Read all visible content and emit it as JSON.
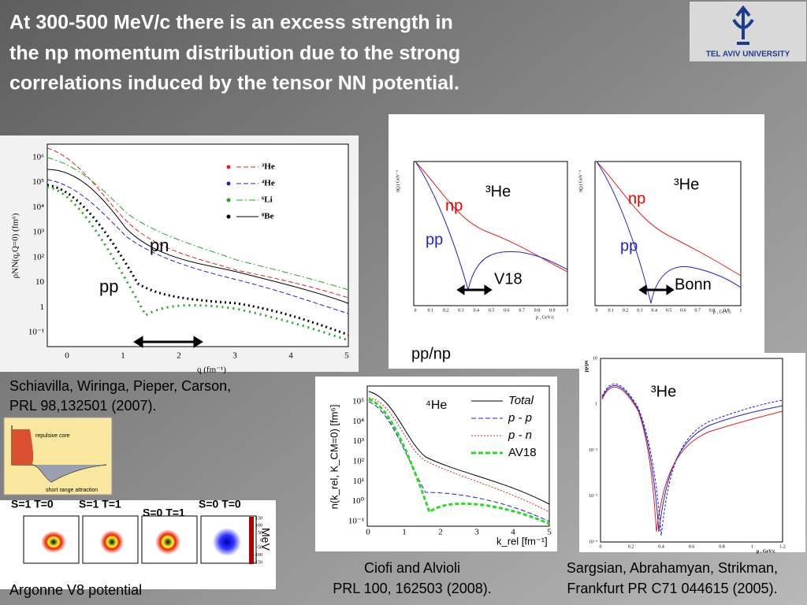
{
  "title_lines": [
    "At 300-500 MeV/c there is an excess strength in",
    "the np momentum distribution due to the strong",
    "correlations induced by the  tensor NN potential."
  ],
  "logo": "TEL AVIV UNIVERSITY",
  "left_plot": {
    "xticks": [
      "0",
      "1",
      "2",
      "3",
      "4",
      "5"
    ],
    "yticks": [
      "10⁶",
      "10⁵",
      "10⁴",
      "10³",
      "10²",
      "10",
      "1",
      "10⁻¹"
    ],
    "xlabel": "q (fm⁻¹)",
    "ylabel": "ρNN(q,Q=0) (fm⁶)",
    "legend": [
      "³He",
      "⁴He",
      "⁶Li",
      "⁸Be"
    ],
    "pn": "pn",
    "pp": "pp",
    "ref_lines": [
      "Schiavilla, Wiringa, Pieper, Carson,",
      "PRL 98,132501 (2007)."
    ]
  },
  "top_right": {
    "left": {
      "nucleus": "³He",
      "np": "np",
      "pp": "pp",
      "potential": "V18"
    },
    "right": {
      "nucleus": "³He",
      "np": "np",
      "pp": "pp",
      "potential": "Bonn"
    },
    "xticks": [
      "0",
      "0.1",
      "0.2",
      "0.3",
      "0.4",
      "0.5",
      "0.6",
      "0.7",
      "0.8",
      "0.9",
      "1"
    ],
    "xlabel": "p , GeV/c",
    "ylabel": "n(p) GeV⁻³",
    "caption": "pp/np"
  },
  "middle_plot": {
    "nucleus": "⁴He",
    "legend": [
      "Total",
      "p - p",
      "p - n",
      "AV18"
    ],
    "xticks": [
      "0",
      "1",
      "2",
      "3",
      "4",
      "5"
    ],
    "yticks": [
      "10⁵",
      "10⁴",
      "10³",
      "10²",
      "10¹",
      "10⁰",
      "10⁻¹"
    ],
    "xlabel": "k_rel [fm⁻¹]",
    "ylabel": "n(k_rel, K_CM=0) [fm⁶]",
    "ref_lines": [
      "Ciofi and Alvioli",
      "PRL 100, 162503 (2008)."
    ]
  },
  "right_plot": {
    "nucleus": "³He",
    "ylabel": "pp/pn",
    "yticks": [
      "10",
      "1",
      "10⁻¹",
      "10⁻²",
      "10⁻³"
    ],
    "xticks": [
      "0",
      "0.2",
      "0.4",
      "0.6",
      "0.8",
      "1",
      "1.2"
    ],
    "xlabel": "p , GeV/c",
    "ref_lines": [
      "Sargsian, Abrahamyan, Strikman,",
      "Frankfurt PR C71 044615 (2005)."
    ]
  },
  "potential_sketch": {
    "core": "repulsive core",
    "attraction": "short range attraction"
  },
  "densities": {
    "labels": [
      "S=1 T=0",
      "S=1 T=1",
      "S=0 T=1",
      "S=0 T=0"
    ],
    "colorbar_ticks": [
      "150",
      "100",
      "50",
      "0",
      "-50",
      "-100",
      "-150"
    ],
    "unit": "MeV",
    "caption": "Argonne V8 potential"
  }
}
